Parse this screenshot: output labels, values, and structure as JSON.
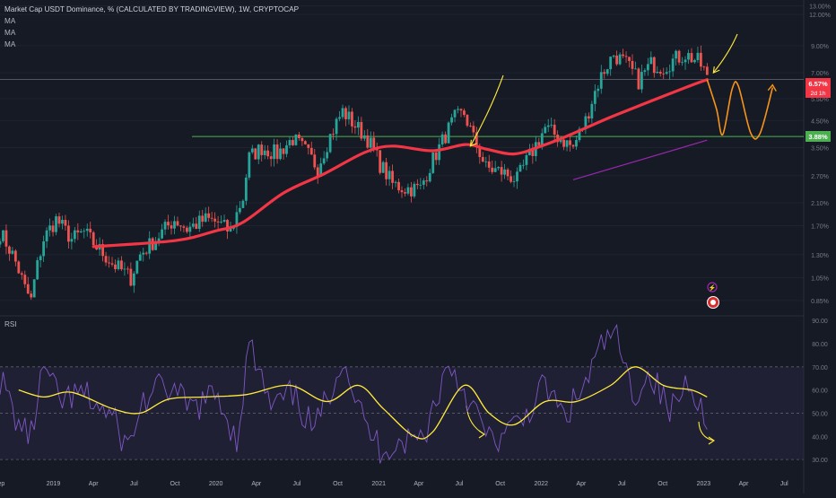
{
  "header": {
    "title": "Market Cap USDT Dominance, % (CALCULATED BY TRADINGVIEW), 1W, CRYPTOCAP",
    "indicators": [
      "MA",
      "MA",
      "MA"
    ]
  },
  "rsi_label": "RSI",
  "price_badge": {
    "value": "6.57%",
    "countdown": "2d 1h"
  },
  "level_badge": {
    "value": "3.88%"
  },
  "colors": {
    "background": "#161a25",
    "candle_up": "#26a69a",
    "candle_down": "#ef5350",
    "ma_main": "#f23645",
    "ma_secondary": "#9c27b0",
    "support_line": "#4caf50",
    "rsi_line": "#7e57c2",
    "rsi_ma": "#ffeb3b",
    "annotation_arrow": "#ffeb3b",
    "projection": "#f7931a"
  },
  "chart_data": [
    {
      "type": "candlestick",
      "title": "Market Cap USDT Dominance, % (CALCULATED BY TRADINGVIEW), 1W, CRYPTOCAP",
      "x_tick_labels": [
        "Sep",
        "2019",
        "Apr",
        "Jul",
        "Oct",
        "2020",
        "Apr",
        "Jul",
        "Oct",
        "2021",
        "Apr",
        "Jul",
        "Oct",
        "2022",
        "Apr",
        "Jul",
        "Oct",
        "2023",
        "Apr",
        "Jul"
      ],
      "y_scale": "log",
      "y_tick_labels": [
        "13.00%",
        "12.00%",
        "9.00%",
        "7.00%",
        "5.50%",
        "4.50%",
        "3.50%",
        "2.70%",
        "2.10%",
        "1.70%",
        "1.30%",
        "1.05%",
        "0.85%"
      ],
      "y_ticks": [
        13.0,
        12.0,
        9.0,
        7.0,
        5.5,
        4.5,
        3.5,
        2.7,
        2.1,
        1.7,
        1.3,
        1.05,
        0.85
      ],
      "ylim": [
        0.75,
        13.5
      ],
      "x_start": "2018-09-03",
      "x_end": "2023-08-14",
      "current_value": 6.57,
      "horizontal_level": 3.88,
      "close_series_weekly_anchors": [
        [
          "2018-09-03",
          1.6
        ],
        [
          "2018-10-01",
          1.3
        ],
        [
          "2018-10-29",
          0.95
        ],
        [
          "2018-11-12",
          0.85
        ],
        [
          "2018-12-10",
          1.5
        ],
        [
          "2019-01-07",
          1.8
        ],
        [
          "2019-02-11",
          1.5
        ],
        [
          "2019-03-11",
          1.6
        ],
        [
          "2019-04-08",
          1.4
        ],
        [
          "2019-05-13",
          1.2
        ],
        [
          "2019-06-24",
          1.05
        ],
        [
          "2019-07-15",
          1.3
        ],
        [
          "2019-08-19",
          1.5
        ],
        [
          "2019-09-30",
          1.8
        ],
        [
          "2019-10-28",
          1.65
        ],
        [
          "2019-12-09",
          1.8
        ],
        [
          "2020-01-06",
          1.75
        ],
        [
          "2020-02-03",
          1.6
        ],
        [
          "2020-03-02",
          2.2
        ],
        [
          "2020-03-16",
          3.2
        ],
        [
          "2020-04-13",
          3.5
        ],
        [
          "2020-05-18",
          3.3
        ],
        [
          "2020-06-22",
          3.8
        ],
        [
          "2020-07-20",
          3.4
        ],
        [
          "2020-08-17",
          2.9
        ],
        [
          "2020-09-14",
          3.9
        ],
        [
          "2020-10-12",
          4.9
        ],
        [
          "2020-11-09",
          4.3
        ],
        [
          "2020-12-07",
          3.8
        ],
        [
          "2021-01-04",
          3.0
        ],
        [
          "2021-02-01",
          2.5
        ],
        [
          "2021-03-01",
          2.4
        ],
        [
          "2021-04-05",
          2.4
        ],
        [
          "2021-05-17",
          3.5
        ],
        [
          "2021-06-21",
          4.6
        ],
        [
          "2021-07-12",
          4.8
        ],
        [
          "2021-08-02",
          3.8
        ],
        [
          "2021-08-30",
          2.9
        ],
        [
          "2021-10-04",
          2.8
        ],
        [
          "2021-11-08",
          2.6
        ],
        [
          "2021-12-13",
          3.4
        ],
        [
          "2022-01-10",
          4.2
        ],
        [
          "2022-02-14",
          3.8
        ],
        [
          "2022-03-14",
          3.5
        ],
        [
          "2022-04-11",
          4.5
        ],
        [
          "2022-05-16",
          6.8
        ],
        [
          "2022-06-13",
          8.3
        ],
        [
          "2022-07-11",
          7.6
        ],
        [
          "2022-08-08",
          6.5
        ],
        [
          "2022-09-05",
          7.6
        ],
        [
          "2022-10-03",
          7.4
        ],
        [
          "2022-10-31",
          8.0
        ],
        [
          "2022-11-21",
          8.3
        ],
        [
          "2022-12-19",
          7.8
        ],
        [
          "2023-01-02",
          7.2
        ],
        [
          "2023-01-09",
          6.57
        ]
      ],
      "moving_average_anchors": [
        [
          "2019-04-01",
          1.4
        ],
        [
          "2019-10-01",
          1.48
        ],
        [
          "2020-01-01",
          1.62
        ],
        [
          "2020-03-01",
          1.75
        ],
        [
          "2020-06-01",
          2.3
        ],
        [
          "2020-09-01",
          2.75
        ],
        [
          "2020-12-01",
          3.35
        ],
        [
          "2021-02-01",
          3.55
        ],
        [
          "2021-05-01",
          3.4
        ],
        [
          "2021-07-15",
          3.6
        ],
        [
          "2021-09-01",
          3.45
        ],
        [
          "2021-11-01",
          3.3
        ],
        [
          "2022-01-01",
          3.55
        ],
        [
          "2022-03-01",
          3.9
        ],
        [
          "2022-06-01",
          4.6
        ],
        [
          "2022-09-01",
          5.35
        ],
        [
          "2022-12-01",
          6.2
        ],
        [
          "2023-01-09",
          6.57
        ]
      ],
      "secondary_ma_anchors": [
        [
          "2022-03-14",
          2.6
        ],
        [
          "2023-01-09",
          3.75
        ]
      ],
      "projection_anchors": [
        [
          "2023-01-09",
          6.57
        ],
        [
          "2023-01-30",
          5.0
        ],
        [
          "2023-02-13",
          3.95
        ],
        [
          "2023-03-06",
          6.0
        ],
        [
          "2023-03-20",
          6.2
        ],
        [
          "2023-04-17",
          4.0
        ],
        [
          "2023-05-08",
          4.0
        ],
        [
          "2023-06-05",
          6.1
        ]
      ],
      "annotations": [
        "yellow arrow pointing down toward mid-2021 price",
        "yellow arrow pointing down toward the latest candle",
        "orange projected path from ~6.57% down toward 3.88% and back up"
      ]
    },
    {
      "type": "line",
      "title": "RSI",
      "y_tick_labels": [
        "90.00",
        "80.00",
        "70.00",
        "60.00",
        "50.00",
        "40.00",
        "30.00"
      ],
      "y_ticks": [
        90,
        80,
        70,
        60,
        50,
        40,
        30
      ],
      "ylim": [
        25,
        92
      ],
      "bands": [
        70,
        50,
        30
      ],
      "rsi_anchors": [
        [
          "2018-09-03",
          65
        ],
        [
          "2018-10-15",
          45
        ],
        [
          "2018-11-12",
          40
        ],
        [
          "2018-12-10",
          70
        ],
        [
          "2019-01-14",
          55
        ],
        [
          "2019-03-11",
          58
        ],
        [
          "2019-05-13",
          48
        ],
        [
          "2019-06-17",
          35
        ],
        [
          "2019-07-22",
          55
        ],
        [
          "2019-09-09",
          62
        ],
        [
          "2019-11-04",
          52
        ],
        [
          "2020-01-06",
          58
        ],
        [
          "2020-02-17",
          38
        ],
        [
          "2020-03-16",
          80
        ],
        [
          "2020-05-04",
          52
        ],
        [
          "2020-06-22",
          58
        ],
        [
          "2020-08-10",
          42
        ],
        [
          "2020-10-12",
          75
        ],
        [
          "2020-11-30",
          45
        ],
        [
          "2021-01-04",
          35
        ],
        [
          "2021-03-01",
          38
        ],
        [
          "2021-04-12",
          40
        ],
        [
          "2021-06-07",
          72
        ],
        [
          "2021-07-26",
          55
        ],
        [
          "2021-09-06",
          38
        ],
        [
          "2021-10-11",
          40
        ],
        [
          "2021-11-22",
          48
        ],
        [
          "2022-01-10",
          62
        ],
        [
          "2022-02-21",
          48
        ],
        [
          "2022-04-04",
          60
        ],
        [
          "2022-05-16",
          78
        ],
        [
          "2022-06-13",
          86
        ],
        [
          "2022-07-25",
          58
        ],
        [
          "2022-09-05",
          67
        ],
        [
          "2022-10-17",
          50
        ],
        [
          "2022-11-28",
          65
        ],
        [
          "2022-12-19",
          58
        ],
        [
          "2023-01-09",
          40
        ]
      ],
      "rsi_ma_anchors": [
        [
          "2018-10-15",
          60
        ],
        [
          "2018-12-10",
          57
        ],
        [
          "2019-02-11",
          59
        ],
        [
          "2019-05-13",
          52
        ],
        [
          "2019-07-15",
          50
        ],
        [
          "2019-09-16",
          56
        ],
        [
          "2019-12-09",
          57
        ],
        [
          "2020-03-09",
          58
        ],
        [
          "2020-06-15",
          62
        ],
        [
          "2020-09-07",
          55
        ],
        [
          "2020-11-16",
          62
        ],
        [
          "2021-01-11",
          52
        ],
        [
          "2021-03-22",
          40
        ],
        [
          "2021-05-03",
          42
        ],
        [
          "2021-07-12",
          62
        ],
        [
          "2021-09-06",
          50
        ],
        [
          "2021-11-01",
          45
        ],
        [
          "2022-01-10",
          55
        ],
        [
          "2022-03-21",
          55
        ],
        [
          "2022-06-06",
          62
        ],
        [
          "2022-08-01",
          70
        ],
        [
          "2022-10-03",
          62
        ],
        [
          "2022-12-05",
          60
        ],
        [
          "2023-01-09",
          57
        ]
      ]
    }
  ]
}
